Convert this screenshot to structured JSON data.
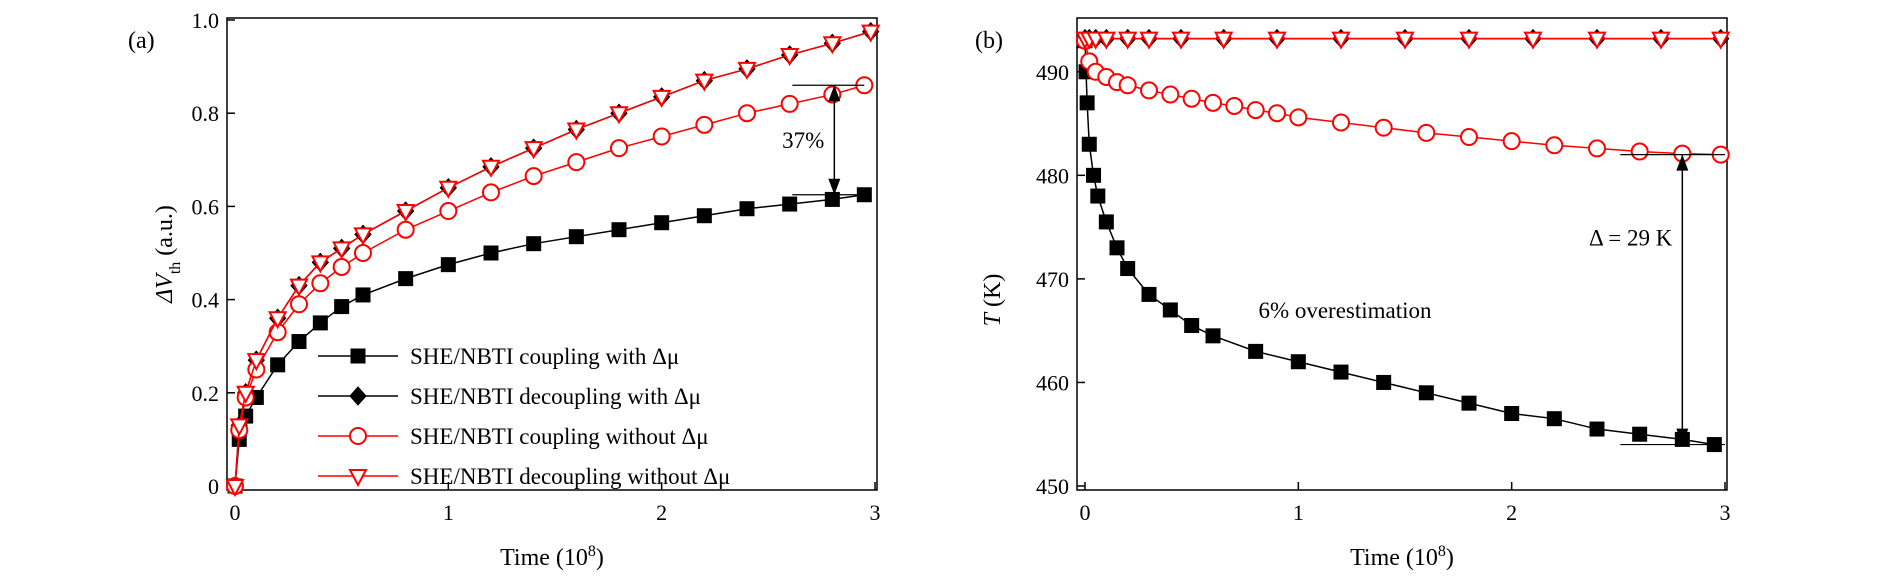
{
  "chart_data": [
    {
      "panel_label": "(a)",
      "type": "line",
      "xlabel": "Time (10",
      "xlabel_sup": "8",
      "xlabel_end": ")",
      "ylabel": "ΔV",
      "ylabel_sub": "th",
      "ylabel_end": " (a.u.)",
      "xlim": [
        0,
        3
      ],
      "ylim": [
        0,
        1.0
      ],
      "xticks": [
        0,
        1,
        2,
        3
      ],
      "xtick_labels": [
        "0",
        "1",
        "2",
        "3"
      ],
      "yticks": [
        0,
        0.2,
        0.4,
        0.6,
        0.8,
        1.0
      ],
      "ytick_labels": [
        "0",
        "0.2",
        "0.4",
        "0.6",
        "0.8",
        "1.0"
      ],
      "legend_position": "bottom-right",
      "series": [
        {
          "name": "SHE/NBTI coupling with Δμ",
          "color": "#000000",
          "marker": "filled-square",
          "x": [
            0,
            0.02,
            0.05,
            0.1,
            0.2,
            0.3,
            0.4,
            0.5,
            0.6,
            0.8,
            1.0,
            1.2,
            1.4,
            1.6,
            1.8,
            2.0,
            2.2,
            2.4,
            2.6,
            2.8,
            2.95
          ],
          "y": [
            0,
            0.1,
            0.15,
            0.19,
            0.26,
            0.31,
            0.35,
            0.385,
            0.41,
            0.445,
            0.475,
            0.5,
            0.52,
            0.535,
            0.55,
            0.565,
            0.58,
            0.595,
            0.605,
            0.615,
            0.625
          ]
        },
        {
          "name": "SHE/NBTI decoupling with Δμ",
          "color": "#000000",
          "marker": "filled-diamond",
          "x": [
            0,
            0.02,
            0.05,
            0.1,
            0.2,
            0.3,
            0.4,
            0.5,
            0.6,
            0.8,
            1.0,
            1.2,
            1.4,
            1.6,
            1.8,
            2.0,
            2.2,
            2.4,
            2.6,
            2.8,
            2.98
          ],
          "y": [
            0,
            0.13,
            0.2,
            0.27,
            0.36,
            0.43,
            0.48,
            0.51,
            0.54,
            0.59,
            0.64,
            0.685,
            0.725,
            0.765,
            0.8,
            0.835,
            0.87,
            0.895,
            0.925,
            0.95,
            0.975
          ]
        },
        {
          "name": "SHE/NBTI coupling without Δμ",
          "color": "#ff0000",
          "marker": "open-circle",
          "x": [
            0,
            0.02,
            0.05,
            0.1,
            0.2,
            0.3,
            0.4,
            0.5,
            0.6,
            0.8,
            1.0,
            1.2,
            1.4,
            1.6,
            1.8,
            2.0,
            2.2,
            2.4,
            2.6,
            2.8,
            2.95
          ],
          "y": [
            0,
            0.12,
            0.19,
            0.25,
            0.33,
            0.39,
            0.435,
            0.47,
            0.5,
            0.55,
            0.59,
            0.63,
            0.665,
            0.695,
            0.725,
            0.75,
            0.775,
            0.8,
            0.82,
            0.84,
            0.86
          ]
        },
        {
          "name": "SHE/NBTI decoupling without Δμ",
          "color": "#ff0000",
          "marker": "open-triangle-down",
          "x": [
            0,
            0.02,
            0.05,
            0.1,
            0.2,
            0.3,
            0.4,
            0.5,
            0.6,
            0.8,
            1.0,
            1.2,
            1.4,
            1.6,
            1.8,
            2.0,
            2.2,
            2.4,
            2.6,
            2.8,
            2.98
          ],
          "y": [
            0,
            0.13,
            0.2,
            0.27,
            0.36,
            0.43,
            0.48,
            0.51,
            0.54,
            0.59,
            0.64,
            0.685,
            0.725,
            0.765,
            0.8,
            0.835,
            0.87,
            0.895,
            0.925,
            0.95,
            0.975
          ]
        }
      ],
      "annotation": {
        "text": "37%",
        "x": 2.95,
        "y_from": 0.86,
        "y_to": 0.625
      }
    },
    {
      "panel_label": "(b)",
      "type": "line",
      "xlabel": "Time (10",
      "xlabel_sup": "8",
      "xlabel_end": ")",
      "ylabel": "T",
      "ylabel_end": " (K)",
      "xlim": [
        0,
        3
      ],
      "ylim": [
        450,
        495
      ],
      "xticks": [
        0,
        1,
        2,
        3
      ],
      "xtick_labels": [
        "0",
        "1",
        "2",
        "3"
      ],
      "yticks": [
        450,
        460,
        470,
        480,
        490
      ],
      "ytick_labels": [
        "450",
        "460",
        "470",
        "480",
        "490"
      ],
      "series": [
        {
          "color": "#000000",
          "marker": "filled-square",
          "x": [
            0,
            0.005,
            0.01,
            0.02,
            0.04,
            0.06,
            0.1,
            0.15,
            0.2,
            0.3,
            0.4,
            0.5,
            0.6,
            0.8,
            1.0,
            1.2,
            1.4,
            1.6,
            1.8,
            2.0,
            2.2,
            2.4,
            2.6,
            2.8,
            2.95
          ],
          "y": [
            493,
            490,
            487,
            483,
            480,
            478,
            475.5,
            473,
            471,
            468.5,
            467,
            465.5,
            464.5,
            463,
            462,
            461,
            460,
            459,
            458,
            457,
            456.5,
            455.5,
            455,
            454.5,
            454
          ]
        },
        {
          "color": "#000000",
          "marker": "filled-diamond",
          "x": [
            0,
            0.02,
            0.05,
            0.1,
            0.2,
            0.3,
            0.45,
            0.65,
            0.9,
            1.2,
            1.5,
            1.8,
            2.1,
            2.4,
            2.7,
            2.98
          ],
          "y": [
            493.2,
            493.2,
            493.2,
            493.2,
            493.2,
            493.2,
            493.2,
            493.2,
            493.2,
            493.2,
            493.2,
            493.2,
            493.2,
            493.2,
            493.2,
            493.2
          ]
        },
        {
          "color": "#ff0000",
          "marker": "open-circle",
          "x": [
            0,
            0.02,
            0.05,
            0.1,
            0.15,
            0.2,
            0.3,
            0.4,
            0.5,
            0.6,
            0.7,
            0.8,
            0.9,
            1.0,
            1.2,
            1.4,
            1.6,
            1.8,
            2.0,
            2.2,
            2.4,
            2.6,
            2.8,
            2.98
          ],
          "y": [
            493,
            491,
            490,
            489.5,
            489,
            488.7,
            488.2,
            487.8,
            487.4,
            487,
            486.7,
            486.3,
            486,
            485.6,
            485.1,
            484.6,
            484.1,
            483.7,
            483.3,
            482.9,
            482.6,
            482.3,
            482.1,
            482
          ]
        },
        {
          "color": "#ff0000",
          "marker": "open-triangle-down",
          "x": [
            0,
            0.02,
            0.05,
            0.1,
            0.2,
            0.3,
            0.45,
            0.65,
            0.9,
            1.2,
            1.5,
            1.8,
            2.1,
            2.4,
            2.7,
            2.98
          ],
          "y": [
            493.2,
            493.2,
            493.2,
            493.2,
            493.2,
            493.2,
            493.2,
            493.2,
            493.2,
            493.2,
            493.2,
            493.2,
            493.2,
            493.2,
            493.2,
            493.2
          ]
        }
      ],
      "annotations": [
        {
          "text": "Δ = 29 K",
          "x": 2.8,
          "y_from": 482,
          "y_to": 454
        },
        {
          "text": "6% overestimation",
          "x": 1.5,
          "y": 467
        }
      ]
    }
  ]
}
